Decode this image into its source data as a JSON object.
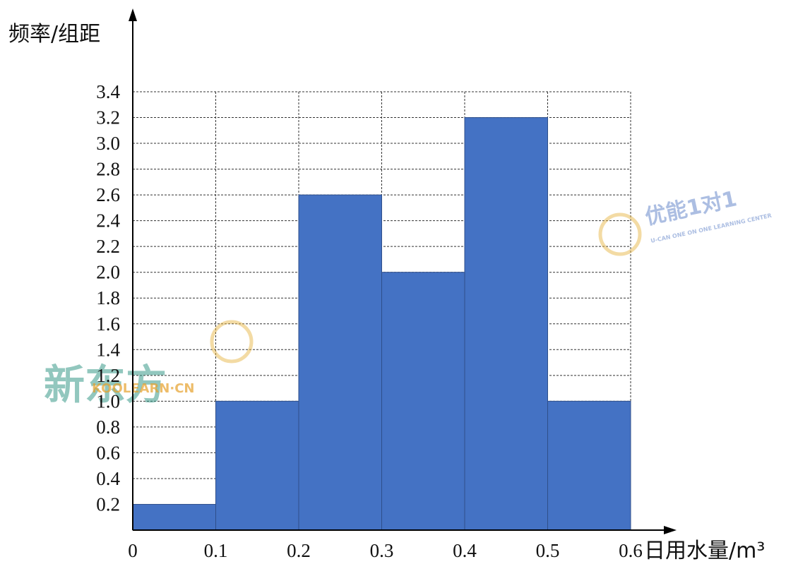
{
  "chart_data": {
    "type": "bar",
    "subtype": "histogram",
    "bins": [
      {
        "from": 0.0,
        "to": 0.1,
        "value": 0.2
      },
      {
        "from": 0.1,
        "to": 0.2,
        "value": 1.0
      },
      {
        "from": 0.2,
        "to": 0.3,
        "value": 2.6
      },
      {
        "from": 0.3,
        "to": 0.4,
        "value": 2.0
      },
      {
        "from": 0.4,
        "to": 0.5,
        "value": 3.2
      },
      {
        "from": 0.5,
        "to": 0.6,
        "value": 1.0
      }
    ],
    "x_ticks": [
      "0",
      "0.1",
      "0.2",
      "0.3",
      "0.4",
      "0.5",
      "0.6"
    ],
    "y_ticks": [
      "0.2",
      "0.4",
      "0.6",
      "0.8",
      "1.0",
      "1.2",
      "1.4",
      "1.6",
      "1.8",
      "2.0",
      "2.2",
      "2.4",
      "2.6",
      "2.8",
      "3.0",
      "3.2",
      "3.4"
    ],
    "ylabel": "频率/组距",
    "xlabel": "日用水量/m³",
    "xlim": [
      0,
      0.6
    ],
    "ylim": [
      0,
      3.4
    ],
    "grid": "dashed",
    "bar_color": "#4472c4"
  },
  "watermarks": [
    {
      "text": "新东方",
      "sub": "KOOLEARN·CN",
      "color": "#3a9a8a"
    },
    {
      "text": "优能1对1",
      "sub": "U-CAN ONE ON ONE LEARNING CENTER",
      "color": "#5b7fc7"
    }
  ]
}
